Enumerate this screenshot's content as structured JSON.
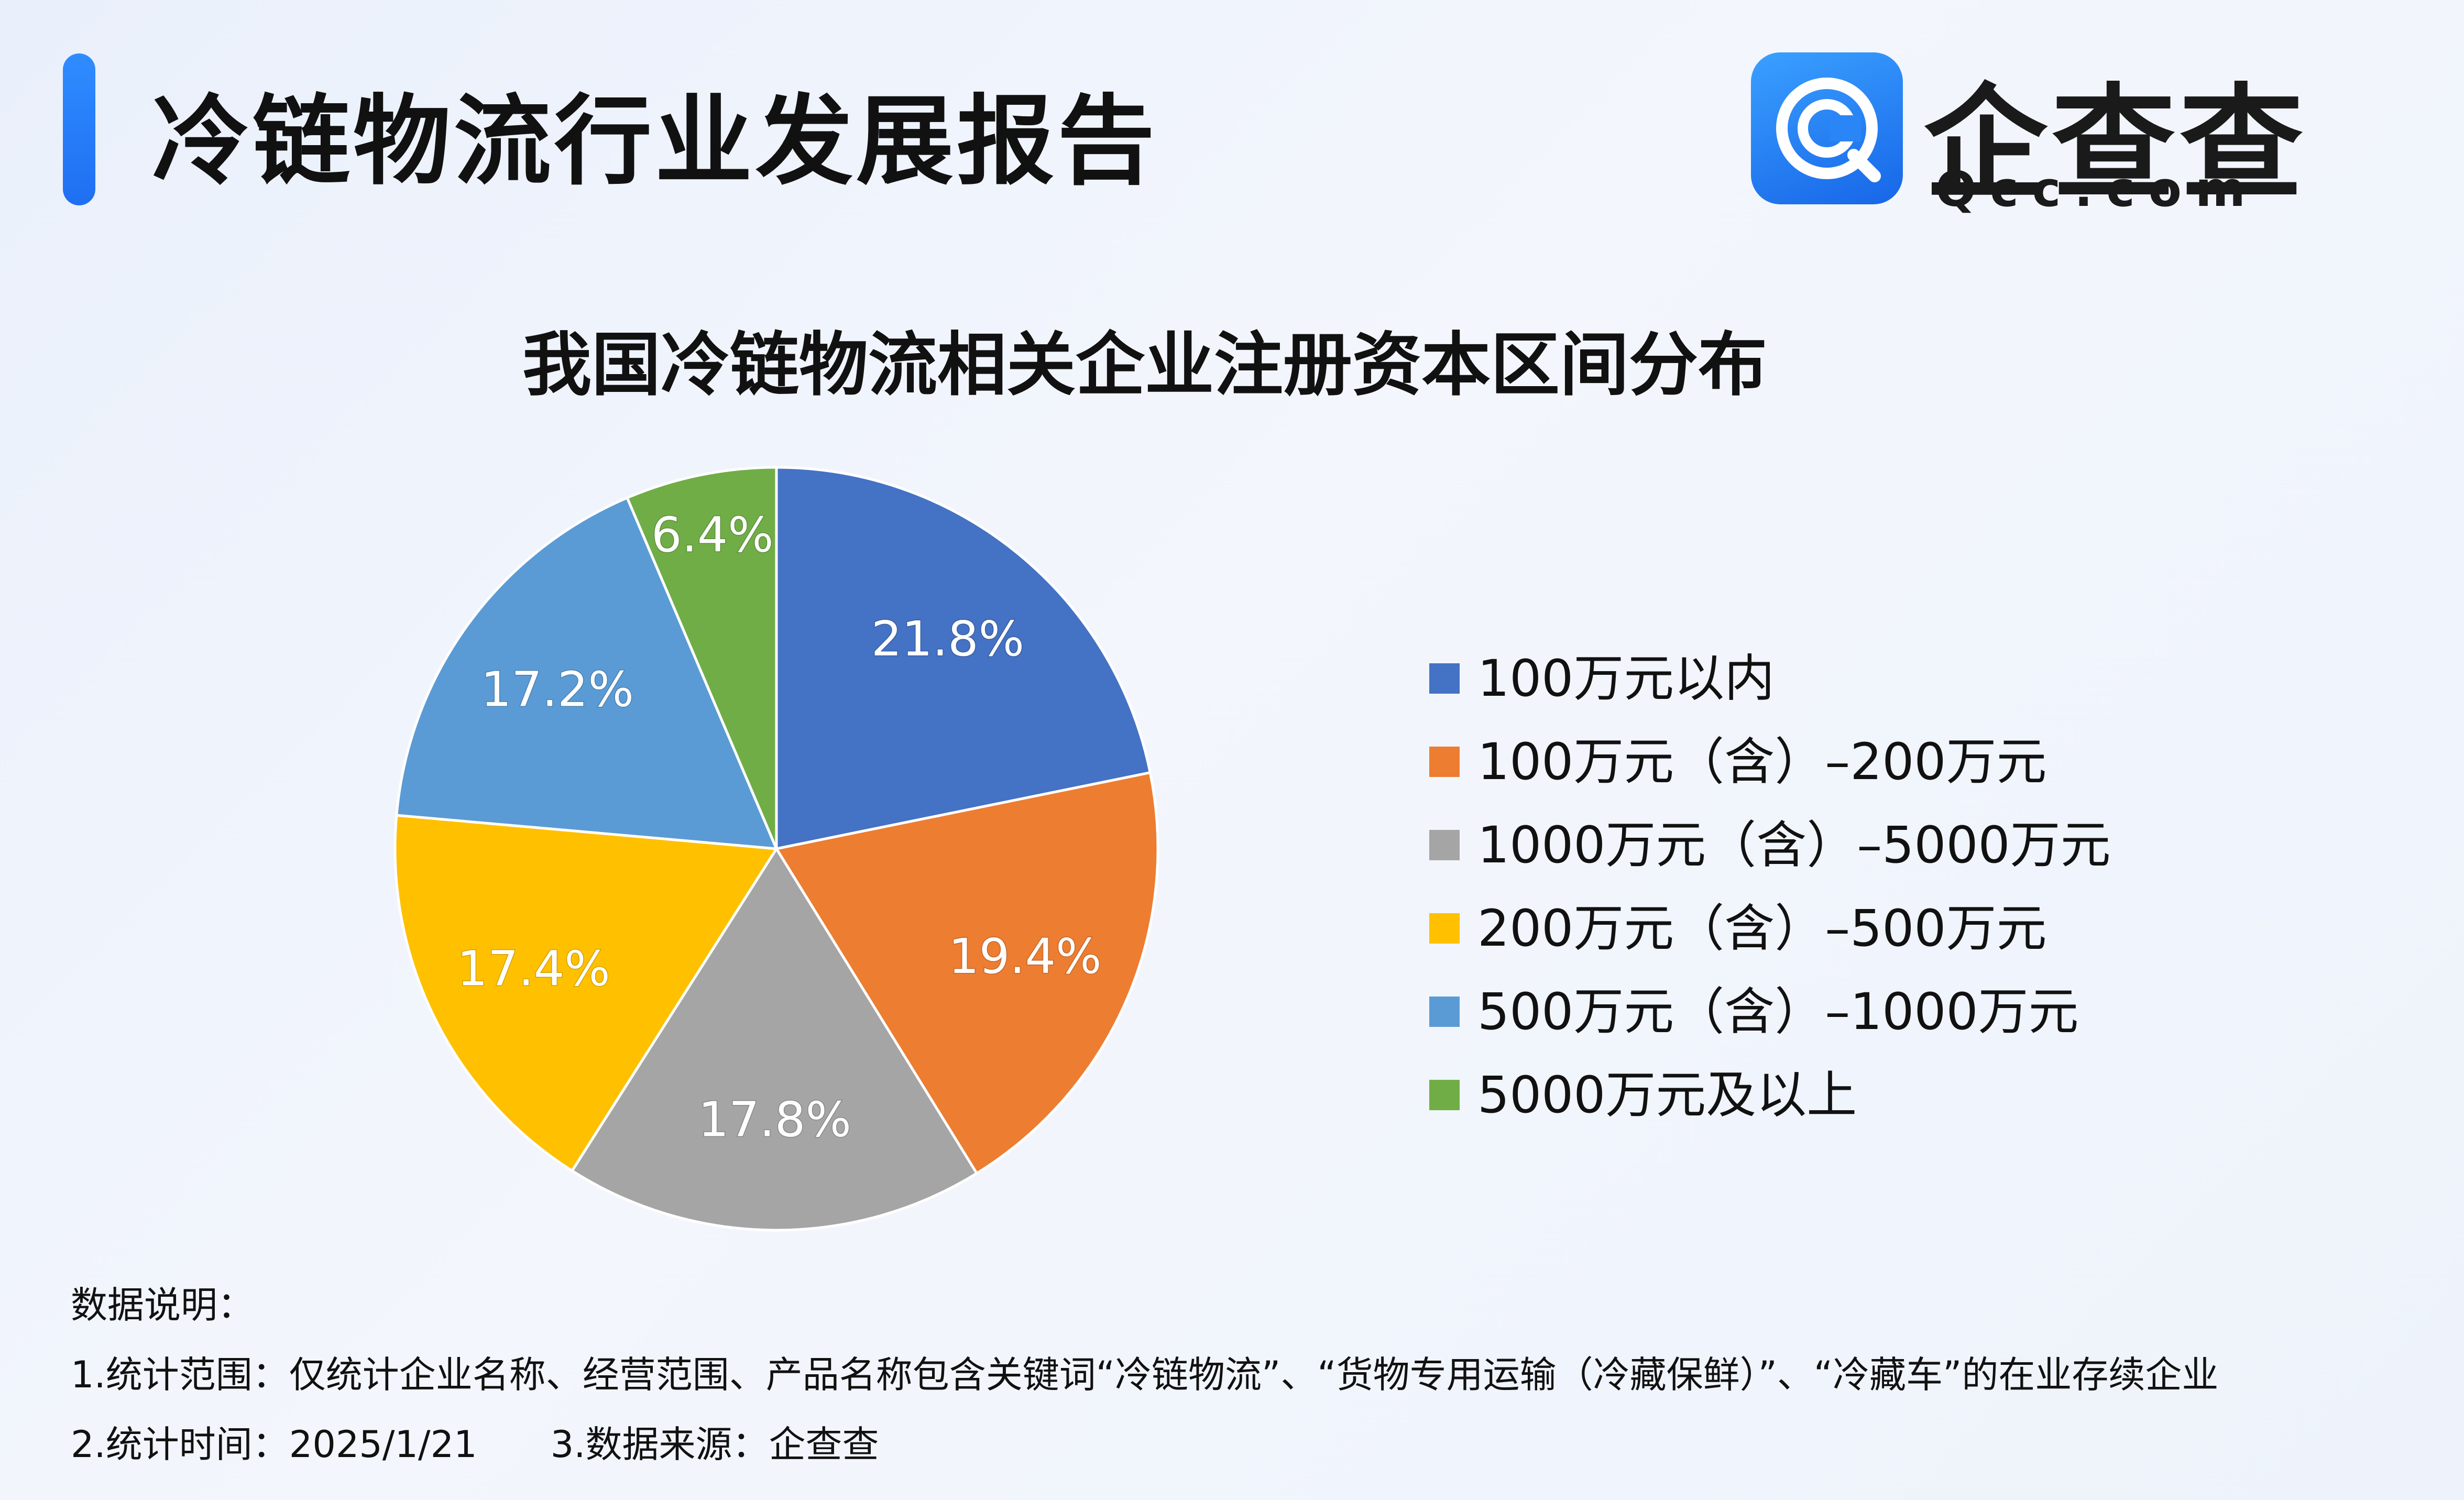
{
  "header": {
    "title": "冷链物流行业发展报告",
    "logo_cn": "企查查",
    "logo_en": "Qcc.com"
  },
  "colors": {
    "accent": "#1f7bf5",
    "slice_1": "#4472c4",
    "slice_2": "#ed7d31",
    "slice_3": "#a5a5a5",
    "slice_4": "#ffc000",
    "slice_5": "#5b9bd5",
    "slice_6": "#70ad47"
  },
  "chart_data": {
    "type": "pie",
    "title": "我国冷链物流相关企业注册资本区间分布",
    "categories": [
      "100万元以内",
      "100万元（含）–200万元",
      "1000万元（含）–5000万元",
      "200万元（含）–500万元",
      "500万元（含）–1000万元",
      "5000万元及以上"
    ],
    "values": [
      21.8,
      19.4,
      17.8,
      17.4,
      17.2,
      6.4
    ],
    "labels": [
      "21.8%",
      "19.4%",
      "17.8%",
      "17.4%",
      "17.2%",
      "6.4%"
    ],
    "legend_position": "right"
  },
  "notes": {
    "heading": "数据说明：",
    "scope": "1.统计范围：仅统计企业名称、经营范围、产品名称包含关键词“冷链物流”、“货物专用运输（冷藏保鲜）”、“冷藏车”的在业存续企业",
    "time": "2.统计时间：2025/1/21",
    "source": "3.数据来源：企查查"
  }
}
